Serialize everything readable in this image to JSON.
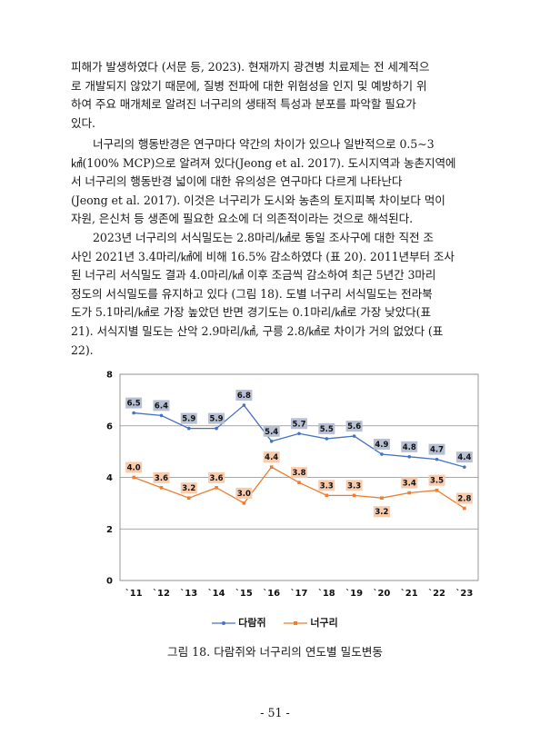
{
  "paragraphs": [
    {
      "lines": [
        "피해가 발생하였다 (서문 등, 2023). 현재까지 광견병 치료제는 전 세계적으",
        "로 개발되지 않았기 때문에, 질병 전파에 대한 위험성을 인지 및 예방하기 위",
        "하여 주요 매개체로 알려진 너구리의 생태적 특성과 분포를 파악할 필요가",
        "있다."
      ]
    },
    {
      "lines": [
        "너구리의 행동반경은 연구마다 약간의 차이가 있으나 일반적으로 0.5∼3",
        "㎢(100% MCP)으로 알려져 있다(Jeong et al. 2017). 도시지역과 농촌지역에",
        "서 너구리의 행동반경 넓이에 대한 유의성은 연구마다 다르게 나타난다",
        "(Jeong et al. 2017). 이것은 너구리가 도시와 농촌의 토지피복 차이보다 먹이",
        "자원, 은신처 등 생존에 필요한 요소에 더 의존적이라는 것으로 해석된다."
      ]
    },
    {
      "lines": [
        "2023년 너구리의 서식밀도는 2.8마리/㎢로 동일 조사구에 대한 직전 조",
        "사인 2021년 3.4마리/㎢에 비해 16.5% 감소하였다 (표 20). 2011년부터 조사",
        "된 너구리 서식밀도 결과 4.0마리/㎢ 이후 조금씩 감소하여 최근 5년간 3마리",
        "정도의 서식밀도를 유지하고 있다 (그림 18). 도별 너구리 서식밀도는 전라북",
        "도가 5.1마리/㎢로 가장 높았던 반면 경기도는 0.1마리/㎢로 가장 낮았다(표",
        "21). 서식지별 밀도는 산악 2.9마리/㎢, 구릉 2.8/㎢로 차이가 거의 없었다 (표",
        "22)."
      ]
    }
  ],
  "chart_data": {
    "type": "line",
    "categories": [
      "`11",
      "`12",
      "`13",
      "`14",
      "`15",
      "`16",
      "`17",
      "`18",
      "`19",
      "`20",
      "`21",
      "`22",
      "`23"
    ],
    "ylim": [
      0,
      8
    ],
    "yticks": [
      "0",
      "2",
      "4",
      "6",
      "8"
    ],
    "grid": true,
    "legend_position": "bottom",
    "series": [
      {
        "name": "다람쥐",
        "color": "#4472C4",
        "label_bg": "#B7C0D2",
        "values": [
          6.5,
          6.4,
          5.9,
          5.9,
          6.8,
          5.4,
          5.7,
          5.5,
          5.6,
          4.9,
          4.8,
          4.7,
          4.4
        ],
        "labels": [
          "6.5",
          "6.4",
          "5.9",
          "5.9",
          "6.8",
          "5.4",
          "5.7",
          "5.5",
          "5.6",
          "4.9",
          "4.8",
          "4.7",
          "4.4"
        ]
      },
      {
        "name": "너구리",
        "color": "#ED7D31",
        "label_bg": "#F8CBAD",
        "values": [
          4.0,
          3.6,
          3.2,
          3.6,
          3.0,
          4.4,
          3.8,
          3.3,
          3.3,
          3.2,
          3.4,
          3.5,
          2.8
        ],
        "labels": [
          "4.0",
          "3.6",
          "3.2",
          "3.6",
          "3.0",
          "4.4",
          "3.8",
          "3.3",
          "3.3",
          "3.2",
          "3.4",
          "3.5",
          "2.8"
        ],
        "label_below": [
          false,
          false,
          false,
          false,
          false,
          false,
          false,
          false,
          false,
          true,
          false,
          false,
          false
        ]
      }
    ]
  },
  "caption": "그림 18. 다람쥐와 너구리의 연도별 밀도변동",
  "page_number": "- 51 -"
}
